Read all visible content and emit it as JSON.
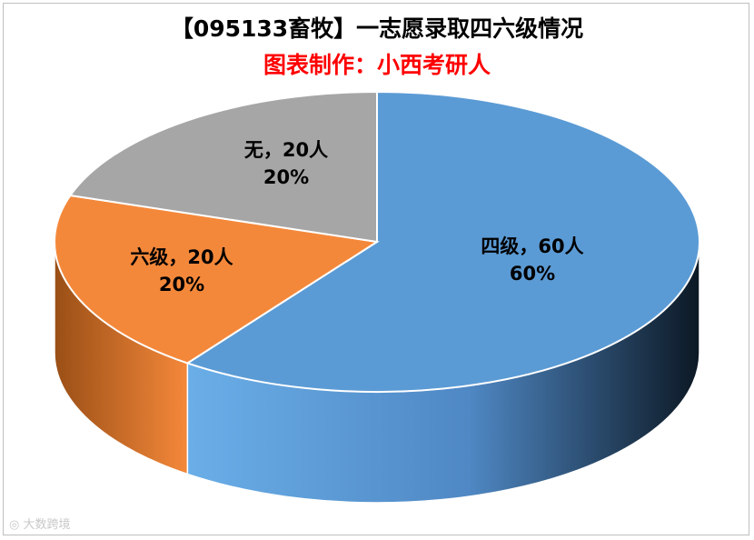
{
  "chart_data": {
    "type": "pie",
    "title": "【095133畜牧】一志愿录取四六级情况",
    "subtitle": "图表制作：小西考研人",
    "slices": [
      {
        "name": "四级",
        "value": 60,
        "unit": "人",
        "percent": "60%",
        "color": "#5b9bd5",
        "side_dark": "#1f3550",
        "side_light": "#6aaee8"
      },
      {
        "name": "六级",
        "value": 20,
        "unit": "人",
        "percent": "20%",
        "color": "#f4883a",
        "side_dark": "#9a4f16",
        "side_light": "#e07a2c"
      },
      {
        "name": "无",
        "value": 20,
        "unit": "人",
        "percent": "20%",
        "color": "#a6a6a6",
        "side_dark": "#6a6a6a",
        "side_light": "#a6a6a6"
      }
    ],
    "labels": [
      {
        "line1": "四级，60人",
        "line2": "60%"
      },
      {
        "line1": "六级，20人",
        "line2": "20%"
      },
      {
        "line1": "无，20人",
        "line2": "20%"
      }
    ],
    "style": "3d-pie"
  },
  "watermark": {
    "text": "大数跨境"
  }
}
